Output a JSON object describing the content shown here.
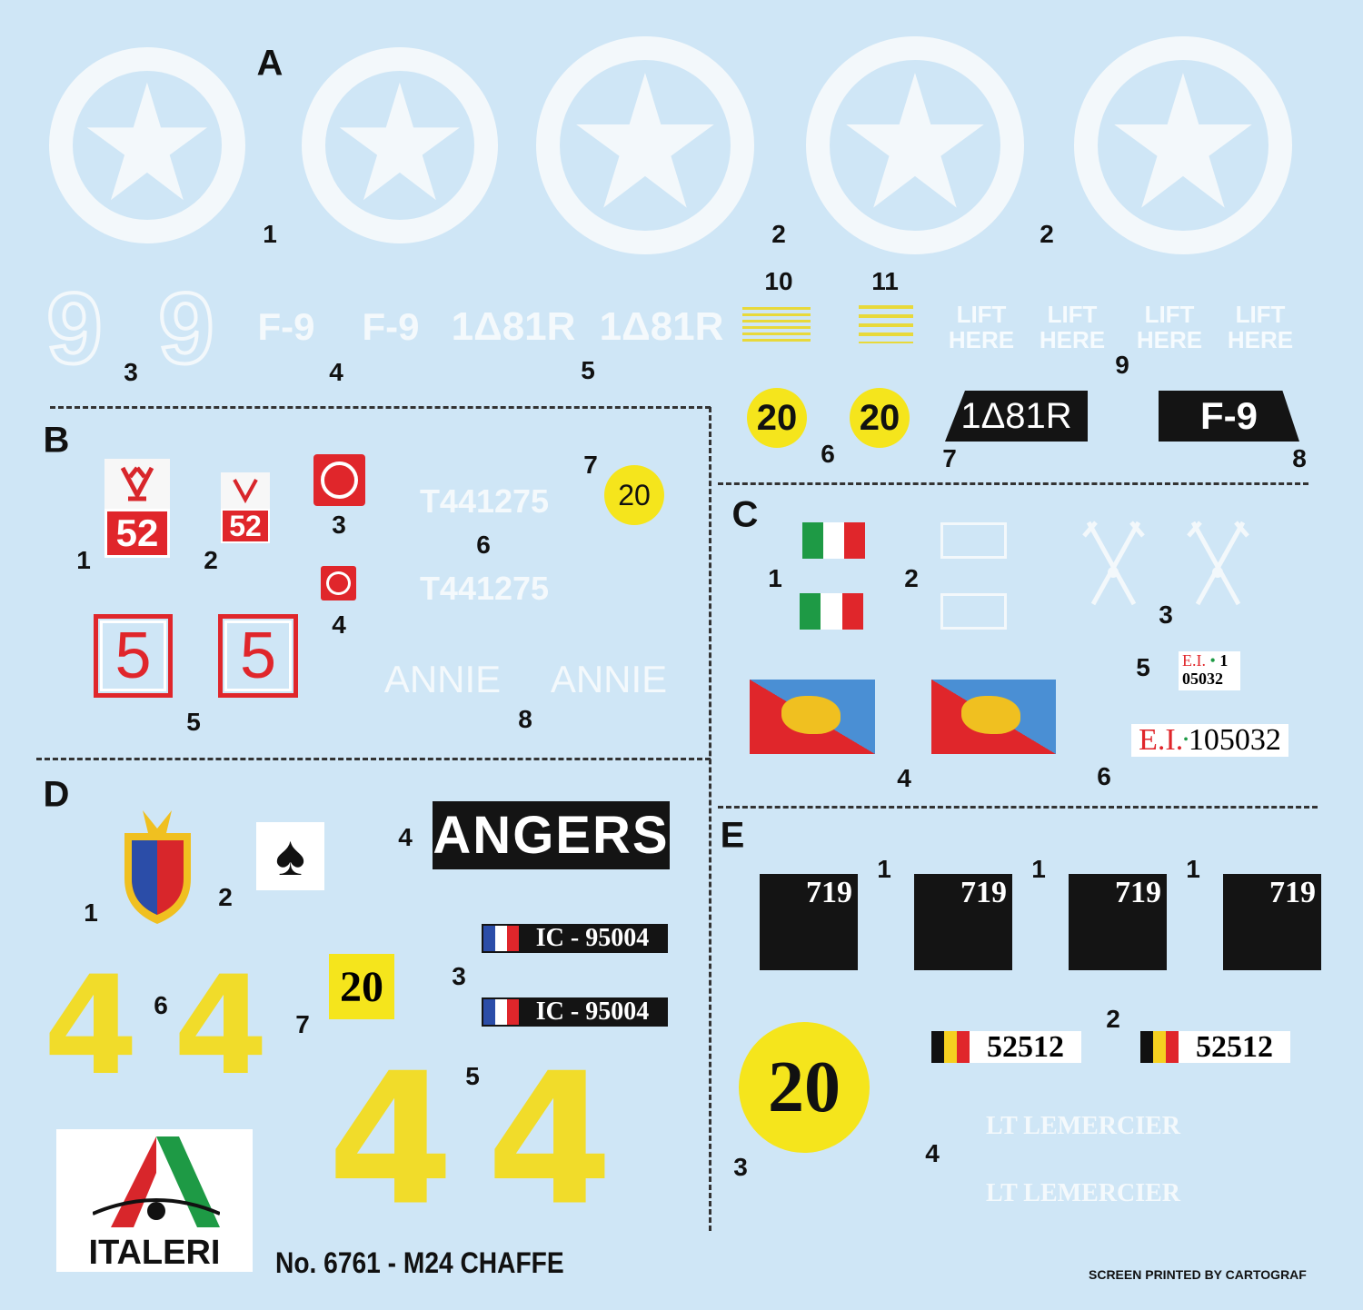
{
  "sections": {
    "a": "A",
    "b": "B",
    "c": "C",
    "d": "D",
    "e": "E"
  },
  "colors": {
    "background": "#cfe6f6",
    "white_decal": "#f3f8fb",
    "yellow": "#f5e51c",
    "red": "#e0262b",
    "black": "#141414"
  },
  "a": {
    "n1": "1",
    "n2a": "2",
    "n2b": "2",
    "n3": "3",
    "n4": "4",
    "n5": "5",
    "n6": "6",
    "n7": "7",
    "n8": "8",
    "n9": "9",
    "n10": "10",
    "n11": "11",
    "nine": "9",
    "f9": "F-9",
    "reg": "1Δ81R",
    "lift": "LIFT",
    "here": "HERE",
    "twenty": "20"
  },
  "b": {
    "n1": "1",
    "n2": "2",
    "n3": "3",
    "n4": "4",
    "n5": "5",
    "n6": "6",
    "n7": "7",
    "n8": "8",
    "fifty_two": "52",
    "serial": "T441275",
    "twenty": "20",
    "five": "5",
    "annie": "ANNIE"
  },
  "c": {
    "n1": "1",
    "n2": "2",
    "n3": "3",
    "n4": "4",
    "n5": "5",
    "n6": "6",
    "ei": "E.I.",
    "ei_small_1": "1",
    "ei_small_2": "05032",
    "ei_num": "105032"
  },
  "d": {
    "n1": "1",
    "n2": "2",
    "n3": "3",
    "n4": "4",
    "n5": "5",
    "n6": "6",
    "n7": "7",
    "angers": "ANGERS",
    "plate": "IC - 95004",
    "twenty": "20",
    "four": "4",
    "spade": "♠"
  },
  "e": {
    "n1a": "1",
    "n1b": "1",
    "n1c": "1",
    "n2": "2",
    "n3": "3",
    "n4": "4",
    "code": "719",
    "twenty": "20",
    "plate": "52512",
    "name": "LT LEMERCIER"
  },
  "footer": {
    "brand": "ITALERI",
    "product": "No. 6761 - M24 CHAFFE",
    "printer": "SCREEN PRINTED BY CARTOGRAF"
  }
}
